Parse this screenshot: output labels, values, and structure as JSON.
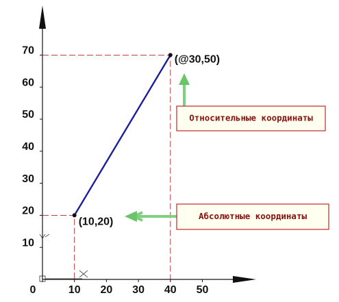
{
  "chart_data": {
    "type": "line",
    "x": [
      10,
      40
    ],
    "series": [
      {
        "color": "#1c1c9c",
        "values": [
          20,
          70
        ]
      }
    ],
    "point_labels": [
      "(10,20)",
      "(@30,50)"
    ],
    "callouts": [
      "Абсолютные координаты",
      "Относительные координаты"
    ],
    "xlim": [
      0,
      66
    ],
    "ylim": [
      0,
      84
    ],
    "xticks": [
      0,
      10,
      20,
      30,
      40,
      50
    ],
    "yticks": [
      10,
      20,
      30,
      40,
      50,
      60,
      70
    ],
    "guide_color": "#b22222"
  }
}
